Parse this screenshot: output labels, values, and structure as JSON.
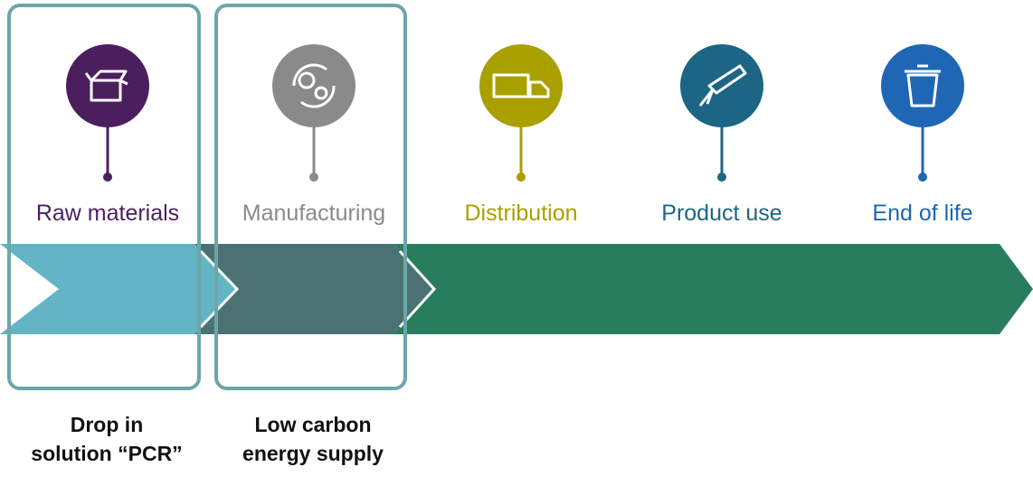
{
  "stages": [
    {
      "label": "Raw materials",
      "color": "#4b1f5e"
    },
    {
      "label": "Manufacturing",
      "color": "#8a8a8a"
    },
    {
      "label": "Distribution",
      "color": "#a9a000"
    },
    {
      "label": "Product use",
      "color": "#1d6584"
    },
    {
      "label": "End of life",
      "color": "#1f67b5"
    }
  ],
  "notes": [
    {
      "lines": [
        "Drop in",
        "solution “PCR”"
      ]
    },
    {
      "lines": [
        "Low carbon",
        "energy supply"
      ]
    }
  ]
}
